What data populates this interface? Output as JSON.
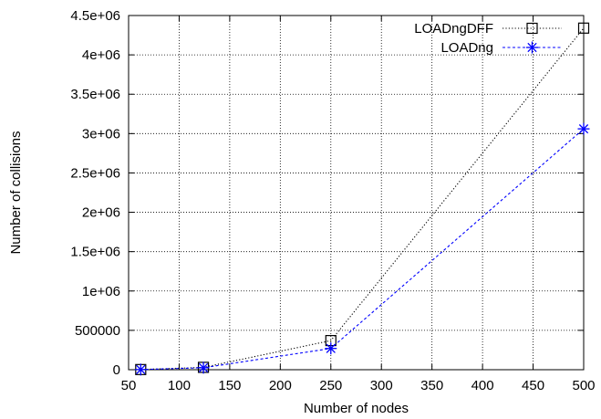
{
  "chart_data": {
    "type": "line",
    "title": "",
    "xlabel": "Number of nodes",
    "ylabel": "Number of collisions",
    "xlim": [
      50,
      500
    ],
    "ylim": [
      0,
      4500000
    ],
    "xticks": [
      50,
      100,
      150,
      200,
      250,
      300,
      350,
      400,
      450,
      500
    ],
    "yticks": [
      0,
      500000,
      1000000,
      1500000,
      2000000,
      2500000,
      3000000,
      3500000,
      4000000,
      4500000
    ],
    "xtick_labels": [
      "50",
      "100",
      "150",
      "200",
      "250",
      "300",
      "350",
      "400",
      "450",
      "500"
    ],
    "ytick_labels": [
      "0",
      "500000",
      "1e+06",
      "1.5e+06",
      "2e+06",
      "2.5e+06",
      "3e+06",
      "3.5e+06",
      "4e+06",
      "4.5e+06"
    ],
    "grid": true,
    "legend_position": "top-right",
    "series": [
      {
        "name": "LOADngDFF",
        "color": "#000000",
        "marker": "square",
        "line_style": "dotted",
        "x": [
          62,
          124,
          250,
          500
        ],
        "y": [
          2000,
          30000,
          370000,
          4340000
        ]
      },
      {
        "name": "LOADng",
        "color": "#0000ff",
        "marker": "asterisk",
        "line_style": "dashed",
        "x": [
          62,
          124,
          250,
          500
        ],
        "y": [
          2000,
          25000,
          270000,
          3060000
        ]
      }
    ]
  }
}
